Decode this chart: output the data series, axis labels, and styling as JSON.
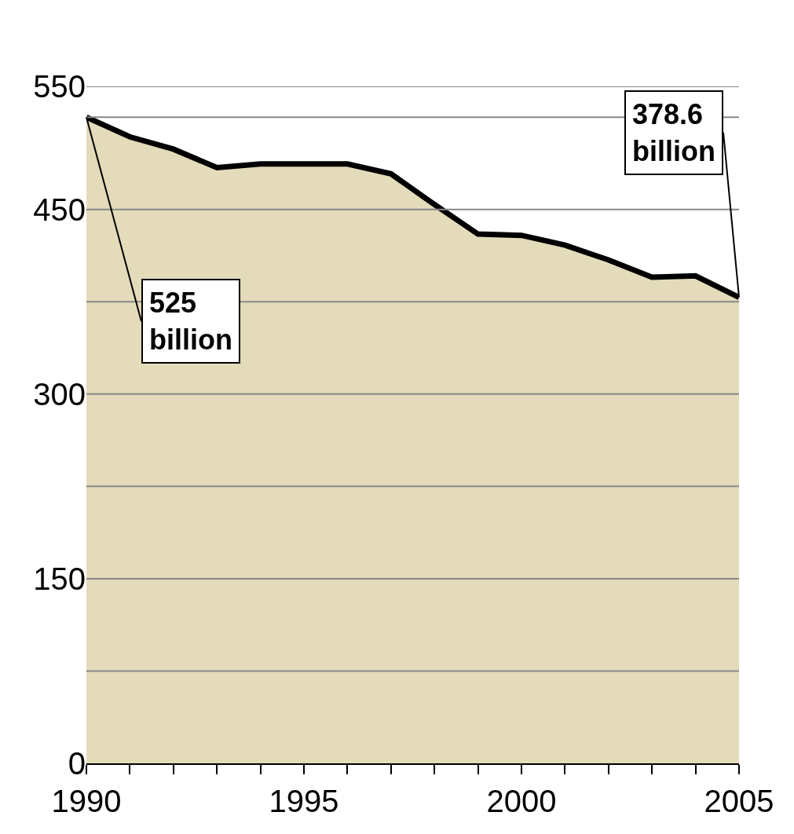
{
  "chart_data": {
    "type": "area",
    "x": [
      1990,
      1991,
      1992,
      1993,
      1994,
      1995,
      1996,
      1997,
      1998,
      1999,
      2000,
      2001,
      2002,
      2003,
      2004,
      2005
    ],
    "series": [
      {
        "color": "#e3dbb9",
        "values": [
          525,
          509,
          499,
          484,
          487,
          487,
          487,
          479,
          454,
          430,
          429,
          421,
          409,
          395,
          396,
          378.6
        ]
      }
    ],
    "xlim": [
      1990,
      2005
    ],
    "xticks": [
      1990,
      {
        "value": 1991,
        "label": null
      },
      {
        "value": 1992,
        "label": null
      },
      {
        "value": 1993,
        "label": null
      },
      {
        "value": 1994,
        "label": null
      },
      1995,
      {
        "value": 1996,
        "label": null
      },
      {
        "value": 1997,
        "label": null
      },
      {
        "value": 1998,
        "label": null
      },
      {
        "value": 1999,
        "label": null
      },
      2000,
      {
        "value": 2001,
        "label": null
      },
      {
        "value": 2002,
        "label": null
      },
      {
        "value": 2003,
        "label": null
      },
      {
        "value": 2004,
        "label": null
      },
      2005
    ],
    "ylim": [
      0,
      550
    ],
    "yticks": [
      0,
      {
        "value": 75,
        "label": null
      },
      150,
      {
        "value": 225,
        "label": null
      },
      300,
      {
        "value": 375,
        "label": null
      },
      450,
      {
        "value": 525,
        "label": null
      },
      550
    ],
    "grid": "y",
    "annotations": [
      {
        "text": "525\nbillion",
        "x": 1990,
        "y": 525
      },
      {
        "text": "378.6\nbillion",
        "x": 2005,
        "y": 378.6
      }
    ]
  }
}
